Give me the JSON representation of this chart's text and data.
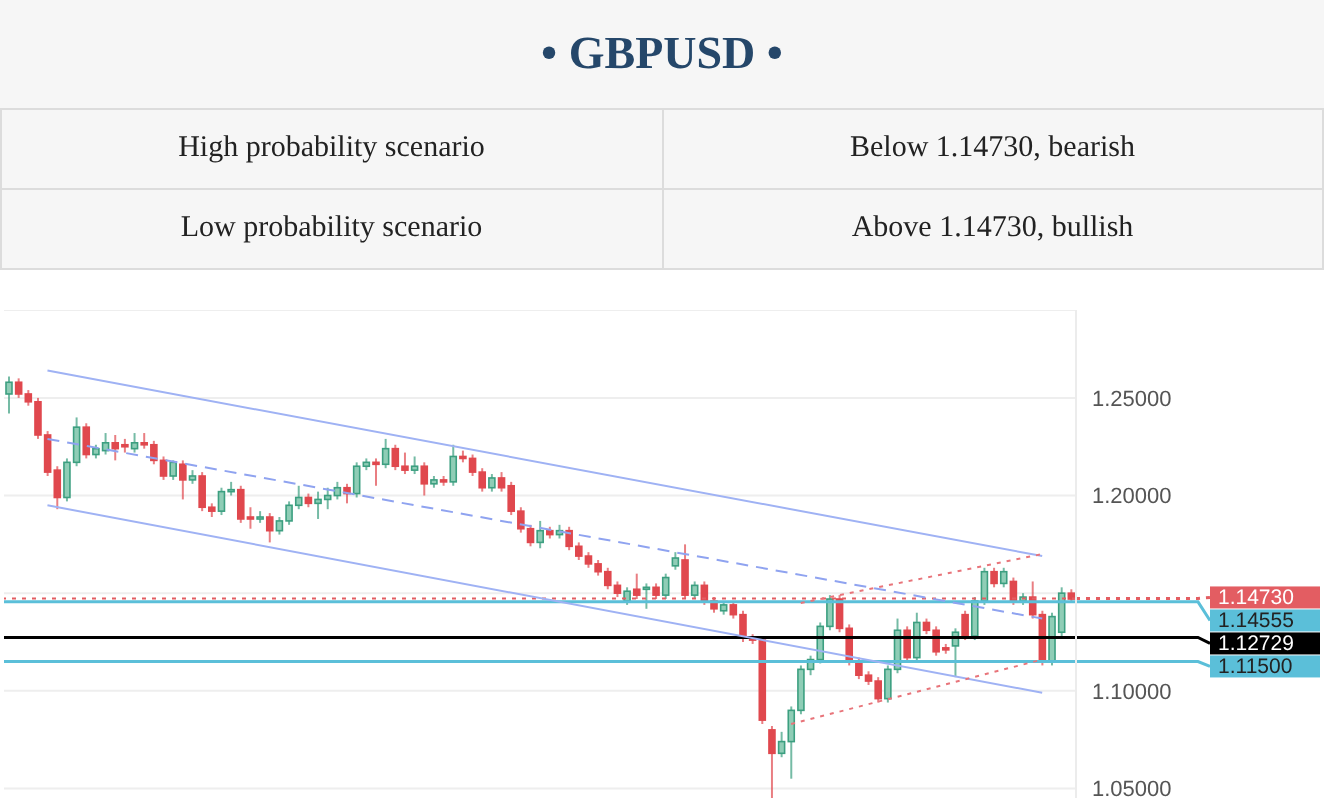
{
  "chart_data": {
    "type": "candlestick",
    "title": "• GBPUSD •",
    "annotations": [
      "High probability scenario",
      "Below 1.14730, bearish",
      "Low probability scenario",
      "Above 1.14730, bullish"
    ],
    "categories": [
      null,
      null,
      null,
      null,
      null,
      null,
      null,
      null,
      null,
      null,
      null,
      null,
      null,
      null,
      null,
      null,
      null,
      null,
      null,
      null,
      null,
      null,
      null,
      null,
      null,
      null,
      null,
      null,
      null,
      null,
      null,
      null,
      null,
      null,
      null,
      null,
      null,
      null,
      null,
      null,
      null,
      null,
      null,
      null,
      null,
      null,
      null,
      null,
      null,
      null,
      null,
      null,
      null,
      null,
      null,
      null,
      null,
      null,
      null,
      null,
      null,
      null,
      null,
      null,
      null,
      null,
      null,
      null,
      null,
      null,
      null,
      null,
      null,
      null,
      null,
      null,
      null,
      null,
      null,
      null,
      null,
      null,
      null,
      null,
      null,
      null,
      null,
      null,
      null,
      null,
      null,
      null,
      null,
      null,
      null,
      null,
      null,
      null,
      null,
      null,
      null,
      null,
      null,
      null,
      null,
      null,
      null,
      null,
      null,
      null,
      null
    ],
    "ohlc": [
      [
        1.252,
        1.261,
        1.242,
        1.258
      ],
      [
        1.258,
        1.26,
        1.25,
        1.252
      ],
      [
        1.252,
        1.254,
        1.246,
        1.248
      ],
      [
        1.248,
        1.25,
        1.229,
        1.231
      ],
      [
        1.231,
        1.233,
        1.21,
        1.212
      ],
      [
        1.213,
        1.215,
        1.193,
        1.199
      ],
      [
        1.199,
        1.219,
        1.197,
        1.217
      ],
      [
        1.217,
        1.24,
        1.215,
        1.235
      ],
      [
        1.235,
        1.237,
        1.219,
        1.221
      ],
      [
        1.221,
        1.226,
        1.219,
        1.224
      ],
      [
        1.223,
        1.232,
        1.221,
        1.227
      ],
      [
        1.227,
        1.231,
        1.218,
        1.224
      ],
      [
        1.226,
        1.229,
        1.222,
        1.225
      ],
      [
        1.224,
        1.232,
        1.222,
        1.227
      ],
      [
        1.227,
        1.232,
        1.224,
        1.226
      ],
      [
        1.226,
        1.228,
        1.216,
        1.218
      ],
      [
        1.218,
        1.22,
        1.208,
        1.21
      ],
      [
        1.21,
        1.218,
        1.208,
        1.217
      ],
      [
        1.216,
        1.218,
        1.198,
        1.208
      ],
      [
        1.208,
        1.213,
        1.206,
        1.21
      ],
      [
        1.21,
        1.212,
        1.192,
        1.194
      ],
      [
        1.194,
        1.196,
        1.189,
        1.192
      ],
      [
        1.192,
        1.204,
        1.19,
        1.202
      ],
      [
        1.202,
        1.207,
        1.2,
        1.203
      ],
      [
        1.203,
        1.205,
        1.186,
        1.188
      ],
      [
        1.189,
        1.194,
        1.183,
        1.188
      ],
      [
        1.188,
        1.192,
        1.186,
        1.189
      ],
      [
        1.189,
        1.191,
        1.176,
        1.182
      ],
      [
        1.182,
        1.189,
        1.18,
        1.187
      ],
      [
        1.187,
        1.197,
        1.185,
        1.195
      ],
      [
        1.195,
        1.205,
        1.193,
        1.199
      ],
      [
        1.199,
        1.201,
        1.194,
        1.196
      ],
      [
        1.196,
        1.202,
        1.188,
        1.198
      ],
      [
        1.198,
        1.204,
        1.193,
        1.2
      ],
      [
        1.2,
        1.207,
        1.198,
        1.204
      ],
      [
        1.204,
        1.206,
        1.196,
        1.201
      ],
      [
        1.201,
        1.217,
        1.199,
        1.215
      ],
      [
        1.215,
        1.219,
        1.213,
        1.217
      ],
      [
        1.217,
        1.219,
        1.205,
        1.216
      ],
      [
        1.216,
        1.229,
        1.214,
        1.224
      ],
      [
        1.224,
        1.226,
        1.213,
        1.215
      ],
      [
        1.215,
        1.222,
        1.211,
        1.213
      ],
      [
        1.213,
        1.22,
        1.211,
        1.215
      ],
      [
        1.215,
        1.217,
        1.2,
        1.206
      ],
      [
        1.206,
        1.21,
        1.204,
        1.208
      ],
      [
        1.208,
        1.21,
        1.205,
        1.207
      ],
      [
        1.207,
        1.226,
        1.205,
        1.22
      ],
      [
        1.22,
        1.223,
        1.217,
        1.219
      ],
      [
        1.219,
        1.221,
        1.21,
        1.212
      ],
      [
        1.212,
        1.214,
        1.202,
        1.204
      ],
      [
        1.204,
        1.211,
        1.202,
        1.209
      ],
      [
        1.209,
        1.212,
        1.202,
        1.204
      ],
      [
        1.205,
        1.207,
        1.19,
        1.192
      ],
      [
        1.192,
        1.194,
        1.181,
        1.183
      ],
      [
        1.183,
        1.185,
        1.174,
        1.176
      ],
      [
        1.176,
        1.187,
        1.173,
        1.182
      ],
      [
        1.182,
        1.184,
        1.178,
        1.18
      ],
      [
        1.18,
        1.185,
        1.178,
        1.182
      ],
      [
        1.182,
        1.184,
        1.172,
        1.174
      ],
      [
        1.174,
        1.176,
        1.167,
        1.169
      ],
      [
        1.169,
        1.171,
        1.163,
        1.165
      ],
      [
        1.165,
        1.167,
        1.159,
        1.161
      ],
      [
        1.161,
        1.163,
        1.152,
        1.154
      ],
      [
        1.154,
        1.156,
        1.148,
        1.15
      ],
      [
        1.146,
        1.153,
        1.144,
        1.151
      ],
      [
        1.152,
        1.16,
        1.147,
        1.149
      ],
      [
        1.152,
        1.155,
        1.142,
        1.153
      ],
      [
        1.153,
        1.155,
        1.147,
        1.149
      ],
      [
        1.149,
        1.16,
        1.147,
        1.158
      ],
      [
        1.164,
        1.171,
        1.162,
        1.168
      ],
      [
        1.167,
        1.175,
        1.147,
        1.149
      ],
      [
        1.149,
        1.156,
        1.147,
        1.154
      ],
      [
        1.154,
        1.156,
        1.144,
        1.146
      ],
      [
        1.146,
        1.148,
        1.14,
        1.142
      ],
      [
        1.141,
        1.146,
        1.139,
        1.144
      ],
      [
        1.144,
        1.146,
        1.137,
        1.139
      ],
      [
        1.139,
        1.141,
        1.125,
        1.127
      ],
      [
        1.127,
        1.129,
        1.124,
        1.126
      ],
      [
        1.126,
        1.128,
        1.083,
        1.085
      ],
      [
        1.08,
        1.082,
        1.043,
        1.068
      ],
      [
        1.068,
        1.079,
        1.066,
        1.074
      ],
      [
        1.074,
        1.092,
        1.055,
        1.09
      ],
      [
        1.09,
        1.113,
        1.088,
        1.111
      ],
      [
        1.111,
        1.118,
        1.108,
        1.116
      ],
      [
        1.116,
        1.135,
        1.114,
        1.133
      ],
      [
        1.133,
        1.149,
        1.131,
        1.147
      ],
      [
        1.147,
        1.149,
        1.13,
        1.132
      ],
      [
        1.132,
        1.134,
        1.113,
        1.115
      ],
      [
        1.115,
        1.117,
        1.106,
        1.108
      ],
      [
        1.108,
        1.11,
        1.103,
        1.105
      ],
      [
        1.105,
        1.107,
        1.094,
        1.096
      ],
      [
        1.096,
        1.113,
        1.094,
        1.111
      ],
      [
        1.111,
        1.137,
        1.109,
        1.131
      ],
      [
        1.131,
        1.133,
        1.115,
        1.117
      ],
      [
        1.117,
        1.14,
        1.115,
        1.135
      ],
      [
        1.135,
        1.137,
        1.129,
        1.131
      ],
      [
        1.131,
        1.133,
        1.118,
        1.12
      ],
      [
        1.122,
        1.124,
        1.119,
        1.121
      ],
      [
        1.123,
        1.132,
        1.107,
        1.13
      ],
      [
        1.139,
        1.141,
        1.126,
        1.128
      ],
      [
        1.128,
        1.148,
        1.126,
        1.146
      ],
      [
        1.146,
        1.163,
        1.144,
        1.161
      ],
      [
        1.161,
        1.163,
        1.153,
        1.155
      ],
      [
        1.155,
        1.163,
        1.153,
        1.161
      ],
      [
        1.156,
        1.158,
        1.144,
        1.146
      ],
      [
        1.146,
        1.15,
        1.144,
        1.148
      ],
      [
        1.148,
        1.156,
        1.137,
        1.139
      ],
      [
        1.139,
        1.141,
        1.113,
        1.115
      ],
      [
        1.115,
        1.14,
        1.113,
        1.138
      ],
      [
        1.13,
        1.153,
        1.128,
        1.15
      ],
      [
        1.15,
        1.152,
        1.145,
        1.147
      ]
    ],
    "series": [
      {
        "type": "line",
        "color": "#9fb2f4",
        "line_style": "solid",
        "values": [
          null,
          null,
          null,
          null,
          1.264,
          null,
          null,
          null,
          null,
          null,
          null,
          null,
          null,
          null,
          null,
          null,
          null,
          null,
          null,
          null,
          null,
          null,
          null,
          null,
          null,
          null,
          null,
          null,
          null,
          null,
          null,
          null,
          null,
          null,
          null,
          null,
          null,
          null,
          null,
          null,
          null,
          null,
          null,
          null,
          null,
          null,
          null,
          null,
          null,
          null,
          null,
          null,
          null,
          null,
          null,
          null,
          null,
          null,
          null,
          null,
          null,
          null,
          null,
          null,
          null,
          null,
          null,
          null,
          null,
          null,
          null,
          null,
          null,
          null,
          null,
          null,
          null,
          null,
          null,
          null,
          null,
          null,
          null,
          null,
          null,
          null,
          null,
          null,
          null,
          null,
          null,
          null,
          null,
          null,
          null,
          null,
          null,
          null,
          null,
          null,
          null,
          null,
          null,
          null,
          null,
          null,
          null,
          1.169,
          null,
          null,
          null
        ]
      },
      {
        "type": "line",
        "color": "#8fa3f0",
        "line_style": "dashed",
        "values": [
          null,
          null,
          null,
          null,
          1.229,
          null,
          null,
          null,
          null,
          null,
          null,
          null,
          null,
          null,
          null,
          null,
          null,
          null,
          null,
          null,
          null,
          null,
          null,
          null,
          null,
          null,
          null,
          null,
          null,
          null,
          null,
          null,
          null,
          null,
          null,
          null,
          null,
          null,
          null,
          null,
          null,
          null,
          null,
          null,
          null,
          null,
          null,
          null,
          null,
          null,
          null,
          null,
          null,
          null,
          null,
          null,
          null,
          null,
          null,
          null,
          null,
          null,
          null,
          null,
          null,
          null,
          null,
          null,
          null,
          null,
          null,
          null,
          null,
          null,
          null,
          null,
          null,
          null,
          null,
          null,
          null,
          null,
          null,
          null,
          null,
          null,
          null,
          null,
          null,
          null,
          null,
          null,
          null,
          null,
          null,
          null,
          null,
          null,
          null,
          null,
          null,
          null,
          null,
          null,
          null,
          null,
          null,
          1.137,
          null,
          null,
          null
        ]
      },
      {
        "type": "line",
        "color": "#9fb2f4",
        "line_style": "solid",
        "values": [
          null,
          null,
          null,
          null,
          1.195,
          null,
          null,
          null,
          null,
          null,
          null,
          null,
          null,
          null,
          null,
          null,
          null,
          null,
          null,
          null,
          null,
          null,
          null,
          null,
          null,
          null,
          null,
          null,
          null,
          null,
          null,
          null,
          null,
          null,
          null,
          null,
          null,
          null,
          null,
          null,
          null,
          null,
          null,
          null,
          null,
          null,
          null,
          null,
          null,
          null,
          null,
          null,
          null,
          null,
          null,
          null,
          null,
          null,
          null,
          null,
          null,
          null,
          null,
          null,
          null,
          null,
          null,
          null,
          null,
          null,
          null,
          null,
          null,
          null,
          null,
          null,
          null,
          null,
          null,
          null,
          null,
          null,
          null,
          null,
          null,
          null,
          null,
          null,
          null,
          null,
          null,
          null,
          null,
          null,
          null,
          null,
          null,
          null,
          null,
          null,
          null,
          null,
          null,
          null,
          null,
          null,
          null,
          1.099,
          null,
          null,
          null
        ]
      },
      {
        "type": "line",
        "color": "#e8747a",
        "line_style": "dotted",
        "values": [
          null,
          null,
          null,
          null,
          null,
          null,
          null,
          null,
          null,
          null,
          null,
          null,
          null,
          null,
          null,
          null,
          null,
          null,
          null,
          null,
          null,
          null,
          null,
          null,
          null,
          null,
          null,
          null,
          null,
          null,
          null,
          null,
          null,
          null,
          null,
          null,
          null,
          null,
          null,
          null,
          null,
          null,
          null,
          null,
          null,
          null,
          null,
          null,
          null,
          null,
          null,
          null,
          null,
          null,
          null,
          null,
          null,
          null,
          null,
          null,
          null,
          null,
          null,
          null,
          null,
          null,
          null,
          null,
          null,
          null,
          null,
          null,
          null,
          null,
          null,
          null,
          null,
          null,
          null,
          null,
          null,
          null,
          1.145,
          null,
          null,
          null,
          null,
          null,
          null,
          null,
          null,
          null,
          null,
          null,
          null,
          null,
          null,
          null,
          null,
          null,
          null,
          null,
          null,
          null,
          null,
          null,
          null,
          1.17,
          null,
          null,
          null
        ]
      },
      {
        "type": "line",
        "color": "#e8747a",
        "line_style": "dotted",
        "values": [
          null,
          null,
          null,
          null,
          null,
          null,
          null,
          null,
          null,
          null,
          null,
          null,
          null,
          null,
          null,
          null,
          null,
          null,
          null,
          null,
          null,
          null,
          null,
          null,
          null,
          null,
          null,
          null,
          null,
          null,
          null,
          null,
          null,
          null,
          null,
          null,
          null,
          null,
          null,
          null,
          null,
          null,
          null,
          null,
          null,
          null,
          null,
          null,
          null,
          null,
          null,
          null,
          null,
          null,
          null,
          null,
          null,
          null,
          null,
          null,
          null,
          null,
          null,
          null,
          null,
          null,
          null,
          null,
          null,
          null,
          null,
          null,
          null,
          null,
          null,
          null,
          null,
          null,
          null,
          null,
          null,
          1.083,
          null,
          null,
          null,
          null,
          null,
          null,
          null,
          null,
          null,
          null,
          null,
          null,
          null,
          null,
          null,
          null,
          null,
          null,
          null,
          null,
          null,
          null,
          null,
          null,
          null,
          1.116,
          null,
          null,
          null
        ]
      }
    ],
    "ref_lines": [
      {
        "axis": "y",
        "value": 1.1473,
        "label": "1.14730",
        "color": "#e35d62",
        "line_style": "dotted"
      },
      {
        "axis": "y",
        "value": 1.14555,
        "label": "1.14555",
        "color": "#5bbfd9",
        "line_style": "solid"
      },
      {
        "axis": "y",
        "value": 1.12729,
        "label": "1.12729",
        "color": "#000000",
        "line_style": "solid"
      },
      {
        "axis": "y",
        "value": 1.115,
        "label": "1.11500",
        "color": "#5bbfd9",
        "line_style": "solid"
      }
    ],
    "ylim": [
      1.04,
      1.295
    ],
    "yticks": [
      {
        "value": 1.05,
        "label": "1.05000"
      },
      {
        "value": 1.1,
        "label": "1.10000"
      },
      {
        "value": 1.15,
        "label": null
      },
      {
        "value": 1.2,
        "label": "1.20000"
      },
      {
        "value": 1.25,
        "label": "1.25000"
      }
    ],
    "grid": "y"
  }
}
